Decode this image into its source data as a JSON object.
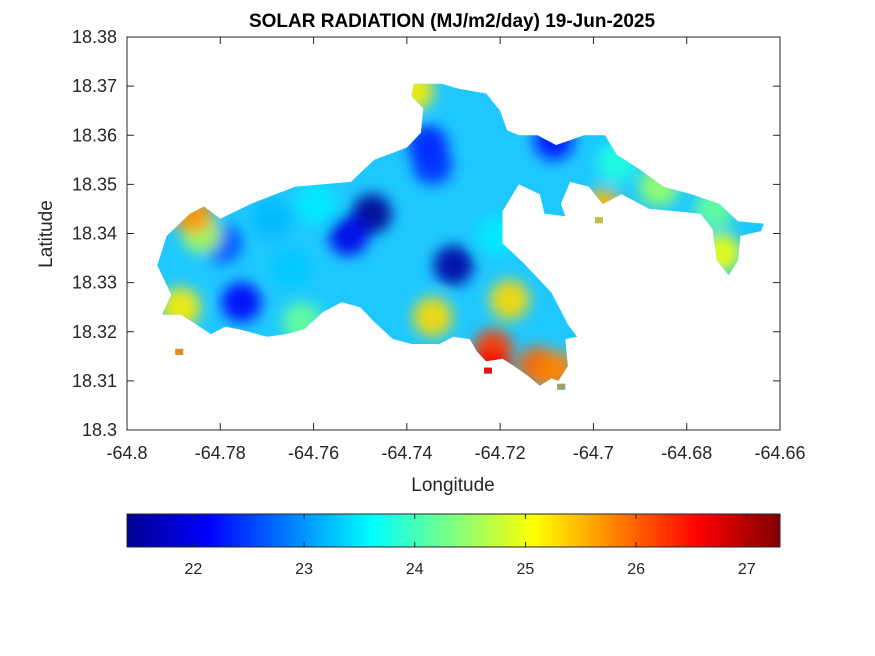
{
  "chart_data": {
    "type": "heatmap",
    "title": "SOLAR RADIATION (MJ/m2/day) 19-Jun-2025",
    "xlabel": "Longitude",
    "ylabel": "Latitude",
    "xlim": [
      -64.8,
      -64.66
    ],
    "ylim": [
      18.3,
      18.38
    ],
    "xticks": [
      -64.8,
      -64.78,
      -64.76,
      -64.74,
      -64.72,
      -64.7,
      -64.68,
      -64.66
    ],
    "xtick_labels": [
      "-64.8",
      "-64.78",
      "-64.76",
      "-64.74",
      "-64.72",
      "-64.7",
      "-64.68",
      "-64.66"
    ],
    "yticks": [
      18.3,
      18.31,
      18.32,
      18.33,
      18.34,
      18.35,
      18.36,
      18.37,
      18.38
    ],
    "ytick_labels": [
      "18.3",
      "18.31",
      "18.32",
      "18.33",
      "18.34",
      "18.35",
      "18.36",
      "18.37",
      "18.38"
    ],
    "grid": false,
    "colormap": "jet",
    "colorbar": {
      "orientation": "horizontal",
      "placement": "bottom",
      "range": [
        21.4,
        27.3
      ],
      "ticks": [
        22,
        23,
        24,
        25,
        26,
        27
      ],
      "tick_labels": [
        "22",
        "23",
        "24",
        "25",
        "26",
        "27"
      ]
    },
    "island_outline": [
      [
        -64.7925,
        18.3235
      ],
      [
        -64.7905,
        18.3275
      ],
      [
        -64.7935,
        18.3335
      ],
      [
        -64.7915,
        18.3395
      ],
      [
        -64.7865,
        18.344
      ],
      [
        -64.7835,
        18.3455
      ],
      [
        -64.78,
        18.343
      ],
      [
        -64.7735,
        18.346
      ],
      [
        -64.764,
        18.3495
      ],
      [
        -64.752,
        18.3505
      ],
      [
        -64.747,
        18.355
      ],
      [
        -64.74,
        18.3575
      ],
      [
        -64.737,
        18.3605
      ],
      [
        -64.7365,
        18.3655
      ],
      [
        -64.739,
        18.368
      ],
      [
        -64.7385,
        18.3705
      ],
      [
        -64.7325,
        18.3705
      ],
      [
        -64.729,
        18.3695
      ],
      [
        -64.723,
        18.3685
      ],
      [
        -64.72,
        18.365
      ],
      [
        -64.7185,
        18.361
      ],
      [
        -64.716,
        18.36
      ],
      [
        -64.712,
        18.36
      ],
      [
        -64.708,
        18.358
      ],
      [
        -64.702,
        18.36
      ],
      [
        -64.6975,
        18.36
      ],
      [
        -64.695,
        18.356
      ],
      [
        -64.69,
        18.353
      ],
      [
        -64.685,
        18.3495
      ],
      [
        -64.679,
        18.348
      ],
      [
        -64.673,
        18.346
      ],
      [
        -64.669,
        18.3425
      ],
      [
        -64.6635,
        18.342
      ],
      [
        -64.664,
        18.3405
      ],
      [
        -64.6685,
        18.3395
      ],
      [
        -64.669,
        18.3345
      ],
      [
        -64.671,
        18.3315
      ],
      [
        -64.6735,
        18.3345
      ],
      [
        -64.6745,
        18.341
      ],
      [
        -64.677,
        18.344
      ],
      [
        -64.682,
        18.3445
      ],
      [
        -64.688,
        18.345
      ],
      [
        -64.694,
        18.348
      ],
      [
        -64.698,
        18.346
      ],
      [
        -64.701,
        18.3495
      ],
      [
        -64.705,
        18.3505
      ],
      [
        -64.707,
        18.346
      ],
      [
        -64.706,
        18.3435
      ],
      [
        -64.7105,
        18.344
      ],
      [
        -64.7115,
        18.348
      ],
      [
        -64.716,
        18.35
      ],
      [
        -64.7195,
        18.3445
      ],
      [
        -64.7195,
        18.338
      ],
      [
        -64.715,
        18.334
      ],
      [
        -64.709,
        18.328
      ],
      [
        -64.7055,
        18.3215
      ],
      [
        -64.7035,
        18.319
      ],
      [
        -64.706,
        18.3185
      ],
      [
        -64.7055,
        18.313
      ],
      [
        -64.7075,
        18.31
      ],
      [
        -64.709,
        18.3105
      ],
      [
        -64.7115,
        18.309
      ],
      [
        -64.714,
        18.311
      ],
      [
        -64.717,
        18.313
      ],
      [
        -64.7195,
        18.3145
      ],
      [
        -64.723,
        18.314
      ],
      [
        -64.725,
        18.316
      ],
      [
        -64.7265,
        18.3185
      ],
      [
        -64.73,
        18.319
      ],
      [
        -64.733,
        18.3175
      ],
      [
        -64.739,
        18.3175
      ],
      [
        -64.743,
        18.3185
      ],
      [
        -64.747,
        18.322
      ],
      [
        -64.75,
        18.325
      ],
      [
        -64.754,
        18.326
      ],
      [
        -64.758,
        18.324
      ],
      [
        -64.762,
        18.3205
      ],
      [
        -64.766,
        18.3195
      ],
      [
        -64.77,
        18.319
      ],
      [
        -64.776,
        18.3205
      ],
      [
        -64.779,
        18.321
      ],
      [
        -64.782,
        18.3195
      ],
      [
        -64.786,
        18.322
      ],
      [
        -64.7885,
        18.3235
      ]
    ],
    "islets": [
      [
        -64.7888,
        18.3159
      ],
      [
        -64.7226,
        18.3121
      ],
      [
        -64.7069,
        18.3088
      ],
      [
        -64.6988,
        18.3427
      ]
    ],
    "field_centers": [
      {
        "lon": -64.7475,
        "lat": 18.344,
        "value": 21.5
      },
      {
        "lon": -64.73,
        "lat": 18.3335,
        "value": 21.6
      },
      {
        "lon": -64.7355,
        "lat": 18.358,
        "value": 22.3
      },
      {
        "lon": -64.7085,
        "lat": 18.359,
        "value": 22.2
      },
      {
        "lon": -64.7755,
        "lat": 18.326,
        "value": 22.1
      },
      {
        "lon": -64.7795,
        "lat": 18.338,
        "value": 22.6
      },
      {
        "lon": -64.7525,
        "lat": 18.3395,
        "value": 22.0
      },
      {
        "lon": -64.765,
        "lat": 18.333,
        "value": 23.3
      },
      {
        "lon": -64.784,
        "lat": 18.34,
        "value": 24.6
      },
      {
        "lon": -64.786,
        "lat": 18.344,
        "value": 25.7
      },
      {
        "lon": -64.7885,
        "lat": 18.325,
        "value": 25.2
      },
      {
        "lon": -64.7595,
        "lat": 18.346,
        "value": 23.5
      },
      {
        "lon": -64.769,
        "lat": 18.343,
        "value": 23.2
      },
      {
        "lon": -64.7625,
        "lat": 18.322,
        "value": 24.2
      },
      {
        "lon": -64.7345,
        "lat": 18.323,
        "value": 25.3
      },
      {
        "lon": -64.718,
        "lat": 18.3265,
        "value": 25.3
      },
      {
        "lon": -64.7215,
        "lat": 18.3165,
        "value": 26.2
      },
      {
        "lon": -64.712,
        "lat": 18.313,
        "value": 26.0
      },
      {
        "lon": -64.722,
        "lat": 18.3125,
        "value": 26.6
      },
      {
        "lon": -64.708,
        "lat": 18.312,
        "value": 25.8
      },
      {
        "lon": -64.7385,
        "lat": 18.369,
        "value": 25.2
      },
      {
        "lon": -64.695,
        "lat": 18.3545,
        "value": 23.8
      },
      {
        "lon": -64.686,
        "lat": 18.3495,
        "value": 24.5
      },
      {
        "lon": -64.674,
        "lat": 18.345,
        "value": 24.2
      },
      {
        "lon": -64.6725,
        "lat": 18.336,
        "value": 25.0
      },
      {
        "lon": -64.698,
        "lat": 18.345,
        "value": 25.5
      },
      {
        "lon": -64.7205,
        "lat": 18.3395,
        "value": 23.5
      },
      {
        "lon": -64.7345,
        "lat": 18.354,
        "value": 22.4
      },
      {
        "lon": -64.789,
        "lat": 18.316,
        "value": 25.8
      }
    ]
  }
}
